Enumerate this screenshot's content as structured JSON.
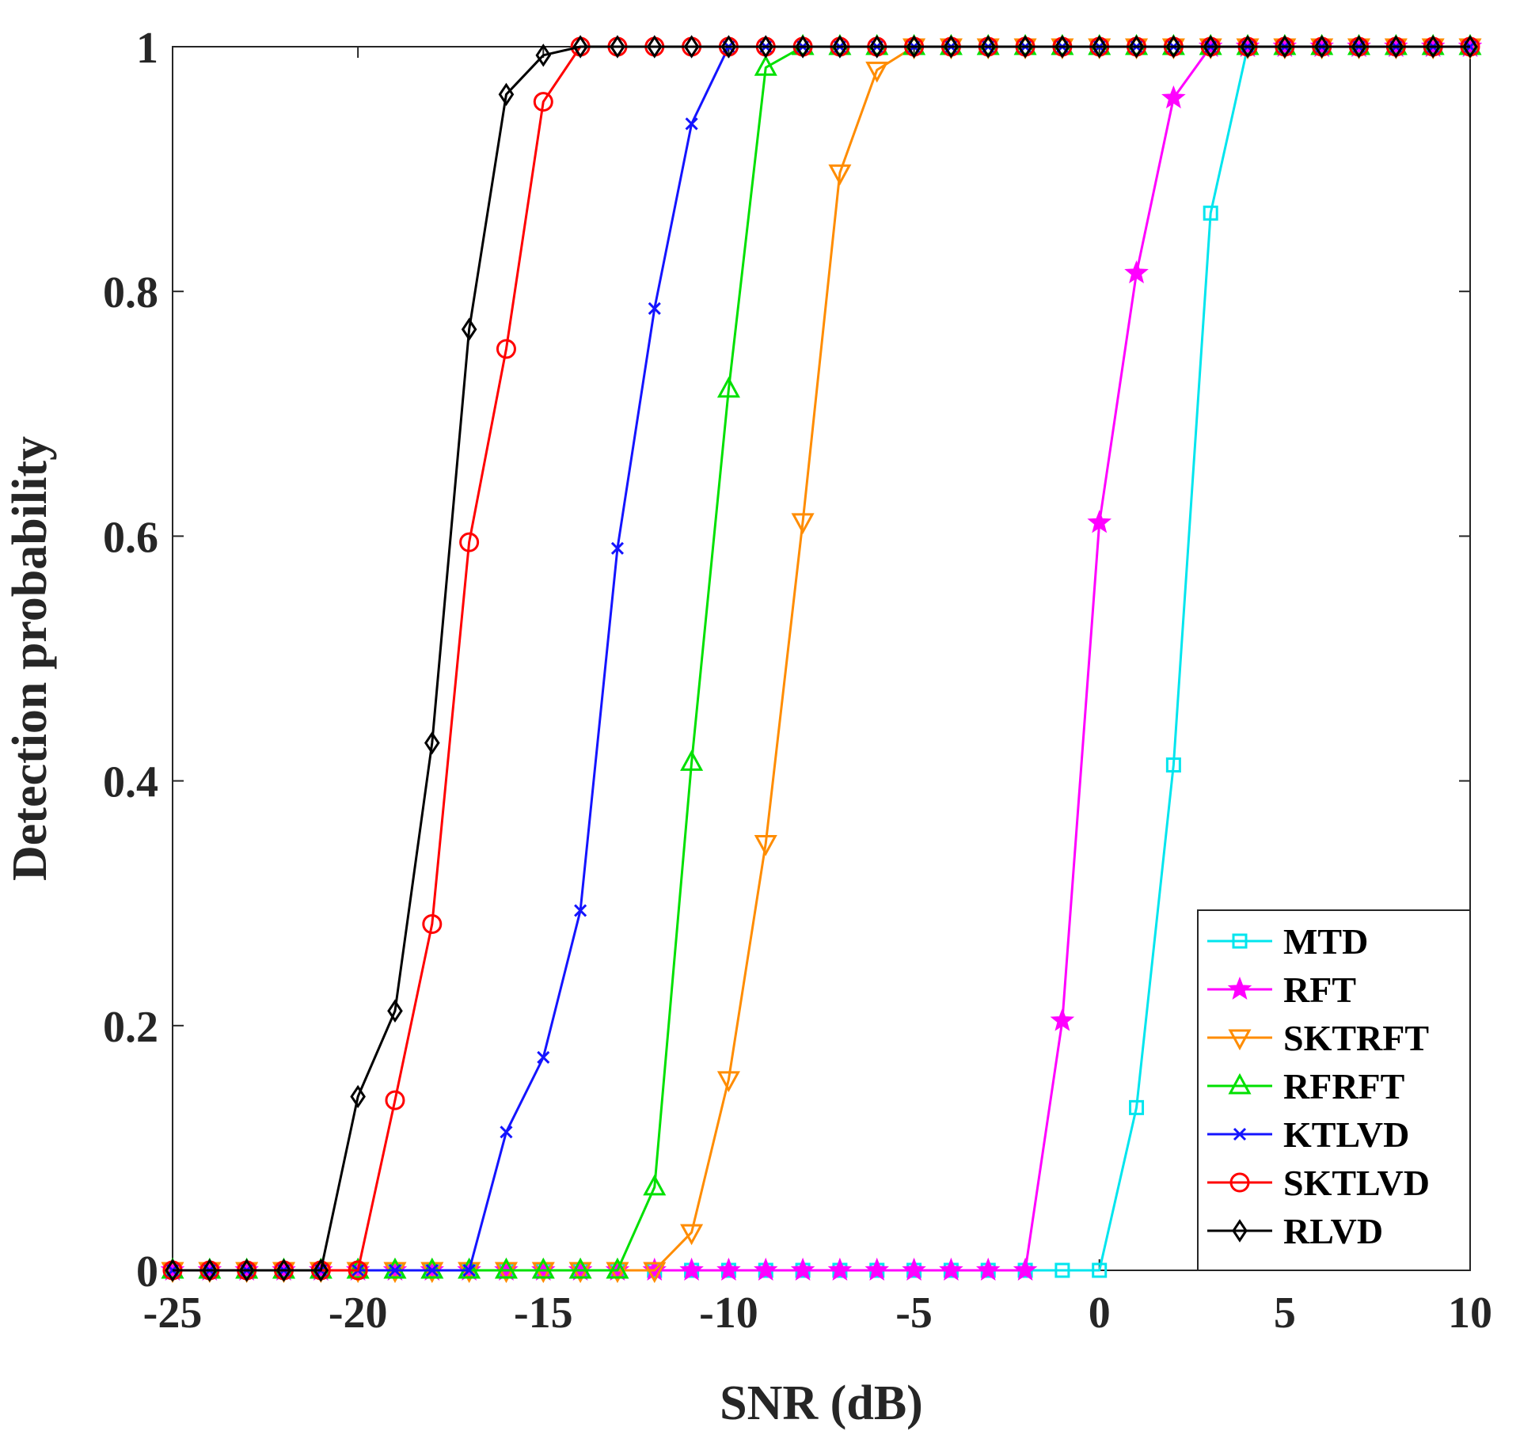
{
  "chart_data": {
    "type": "line",
    "title": "",
    "xlabel": "SNR (dB)",
    "ylabel": "Detection probability",
    "xlim": [
      -25,
      10
    ],
    "ylim": [
      0,
      1
    ],
    "xticks": [
      -25,
      -20,
      -15,
      -10,
      -5,
      0,
      5,
      10
    ],
    "xtick_labels": [
      "-25",
      "-20",
      "-15",
      "-10",
      "-5",
      "0",
      "5",
      "10"
    ],
    "yticks": [
      0,
      0.2,
      0.4,
      0.6,
      0.8,
      1
    ],
    "ytick_labels": [
      "0",
      "0.2",
      "0.4",
      "0.6",
      "0.8",
      "1"
    ],
    "grid": false,
    "legend_position": "bottom-right",
    "x": [
      -25,
      -24,
      -23,
      -22,
      -21,
      -20,
      -19,
      -18,
      -17,
      -16,
      -15,
      -14,
      -13,
      -12,
      -11,
      -10,
      -9,
      -8,
      -7,
      -6,
      -5,
      -4,
      -3,
      -2,
      -1,
      0,
      1,
      2,
      3,
      4,
      5,
      6,
      7,
      8,
      9,
      10
    ],
    "series": [
      {
        "name": "MTD",
        "color": "#00e5ee",
        "marker": "square",
        "values": [
          0,
          0,
          0,
          0,
          0,
          0,
          0,
          0,
          0,
          0,
          0,
          0,
          0,
          0,
          0,
          0,
          0,
          0,
          0,
          0,
          0,
          0,
          0,
          0,
          0,
          0,
          0.133,
          0.413,
          0.864,
          1,
          1,
          1,
          1,
          1,
          1,
          1
        ]
      },
      {
        "name": "RFT",
        "color": "#ff00ff",
        "marker": "star",
        "values": [
          0,
          0,
          0,
          0,
          0,
          0,
          0,
          0,
          0,
          0,
          0,
          0,
          0,
          0,
          0,
          0,
          0,
          0,
          0,
          0,
          0,
          0,
          0,
          0,
          0.204,
          0.611,
          0.815,
          0.958,
          1,
          1,
          1,
          1,
          1,
          1,
          1,
          1
        ]
      },
      {
        "name": "SKTRFT",
        "color": "#ff8c00",
        "marker": "triangle-down",
        "values": [
          0,
          0,
          0,
          0,
          0,
          0,
          0,
          0,
          0,
          0,
          0,
          0,
          0,
          0,
          0.031,
          0.156,
          0.349,
          0.612,
          0.897,
          0.981,
          1,
          1,
          1,
          1,
          1,
          1,
          1,
          1,
          1,
          1,
          1,
          1,
          1,
          1,
          1,
          1
        ]
      },
      {
        "name": "RFRFT",
        "color": "#00e000",
        "marker": "triangle-up",
        "values": [
          0,
          0,
          0,
          0,
          0,
          0,
          0,
          0,
          0,
          0,
          0,
          0,
          0,
          0.068,
          0.415,
          0.72,
          0.983,
          1,
          1,
          1,
          1,
          1,
          1,
          1,
          1,
          1,
          1,
          1,
          1,
          1,
          1,
          1,
          1,
          1,
          1,
          1
        ]
      },
      {
        "name": "KTLVD",
        "color": "#1414ff",
        "marker": "x",
        "values": [
          0,
          0,
          0,
          0,
          0,
          0,
          0,
          0,
          0,
          0.113,
          0.174,
          0.294,
          0.59,
          0.786,
          0.937,
          1,
          1,
          1,
          1,
          1,
          1,
          1,
          1,
          1,
          1,
          1,
          1,
          1,
          1,
          1,
          1,
          1,
          1,
          1,
          1,
          1
        ]
      },
      {
        "name": "SKTLVD",
        "color": "#ff0000",
        "marker": "circle",
        "values": [
          0,
          0,
          0,
          0,
          0,
          0,
          0.139,
          0.283,
          0.595,
          0.753,
          0.955,
          1,
          1,
          1,
          1,
          1,
          1,
          1,
          1,
          1,
          1,
          1,
          1,
          1,
          1,
          1,
          1,
          1,
          1,
          1,
          1,
          1,
          1,
          1,
          1,
          1
        ]
      },
      {
        "name": "RLVD",
        "color": "#000000",
        "marker": "diamond",
        "values": [
          0,
          0,
          0,
          0,
          0,
          0.142,
          0.212,
          0.431,
          0.769,
          0.961,
          0.993,
          1,
          1,
          1,
          1,
          1,
          1,
          1,
          1,
          1,
          1,
          1,
          1,
          1,
          1,
          1,
          1,
          1,
          1,
          1,
          1,
          1,
          1,
          1,
          1,
          1
        ]
      }
    ]
  }
}
